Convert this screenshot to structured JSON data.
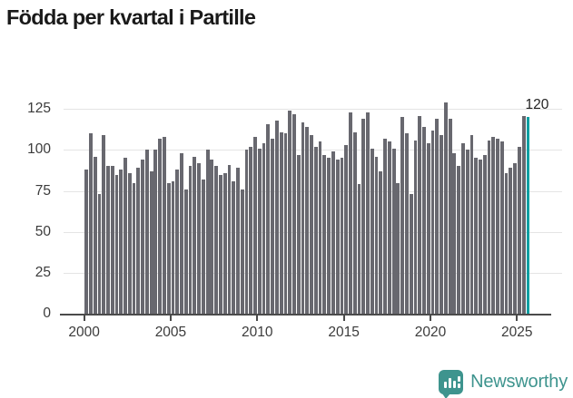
{
  "title": "Födda per kvartal i Partille",
  "annotation": {
    "last_value_label": "120"
  },
  "branding": {
    "logo_text": "Newsworthy",
    "logo_color": "#3e948e",
    "logo_icon": "speech-bubble-bar-chart"
  },
  "colors": {
    "bar": "#68686f",
    "highlight": "#0b9fa2",
    "grid": "#e4e4e4",
    "axis": "#4b4b4b",
    "tick_text": "#3b3b3b",
    "title_text": "#1a1a1a",
    "background": "#ffffff"
  },
  "chart_data": {
    "type": "bar",
    "title": "Födda per kvartal i Partille",
    "frequency": "quarterly",
    "x_start": "2000Q1",
    "x_end": "2025Q3",
    "unit": "births per quarter",
    "values_by_year": [
      {
        "year": 2000,
        "q": [
          88,
          110,
          96,
          73
        ]
      },
      {
        "year": 2001,
        "q": [
          109,
          90,
          90,
          85
        ]
      },
      {
        "year": 2002,
        "q": [
          88,
          95,
          86,
          80
        ]
      },
      {
        "year": 2003,
        "q": [
          89,
          94,
          100,
          87
        ]
      },
      {
        "year": 2004,
        "q": [
          100,
          107,
          108,
          80
        ]
      },
      {
        "year": 2005,
        "q": [
          81,
          88,
          98,
          76
        ]
      },
      {
        "year": 2006,
        "q": [
          90,
          96,
          92,
          82
        ]
      },
      {
        "year": 2007,
        "q": [
          100,
          94,
          90,
          85
        ]
      },
      {
        "year": 2008,
        "q": [
          86,
          91,
          81,
          89
        ]
      },
      {
        "year": 2009,
        "q": [
          76,
          100,
          102,
          108
        ]
      },
      {
        "year": 2010,
        "q": [
          101,
          104,
          116,
          107
        ]
      },
      {
        "year": 2011,
        "q": [
          118,
          111,
          110,
          124
        ]
      },
      {
        "year": 2012,
        "q": [
          122,
          97,
          117,
          114
        ]
      },
      {
        "year": 2013,
        "q": [
          109,
          102,
          105,
          97
        ]
      },
      {
        "year": 2014,
        "q": [
          95,
          99,
          94,
          95
        ]
      },
      {
        "year": 2015,
        "q": [
          103,
          123,
          111,
          79
        ]
      },
      {
        "year": 2016,
        "q": [
          119,
          123,
          101,
          96
        ]
      },
      {
        "year": 2017,
        "q": [
          87,
          107,
          105,
          101
        ]
      },
      {
        "year": 2018,
        "q": [
          80,
          120,
          110,
          73
        ]
      },
      {
        "year": 2019,
        "q": [
          106,
          121,
          114,
          104
        ]
      },
      {
        "year": 2020,
        "q": [
          112,
          119,
          109,
          129
        ]
      },
      {
        "year": 2021,
        "q": [
          119,
          98,
          90,
          104
        ]
      },
      {
        "year": 2022,
        "q": [
          100,
          109,
          95,
          94
        ]
      },
      {
        "year": 2023,
        "q": [
          97,
          106,
          108,
          107
        ]
      },
      {
        "year": 2024,
        "q": [
          105,
          86,
          89,
          92
        ]
      },
      {
        "year": 2025,
        "q": [
          102,
          121,
          120
        ]
      }
    ],
    "highlight_last_bar": true,
    "highlight_value_label": "120",
    "y_ticks": [
      0,
      25,
      50,
      75,
      100,
      125
    ],
    "x_tick_labels": [
      "2000",
      "2005",
      "2010",
      "2015",
      "2020",
      "2025"
    ],
    "ylim": [
      0,
      133
    ],
    "grid": true,
    "legend": false
  }
}
